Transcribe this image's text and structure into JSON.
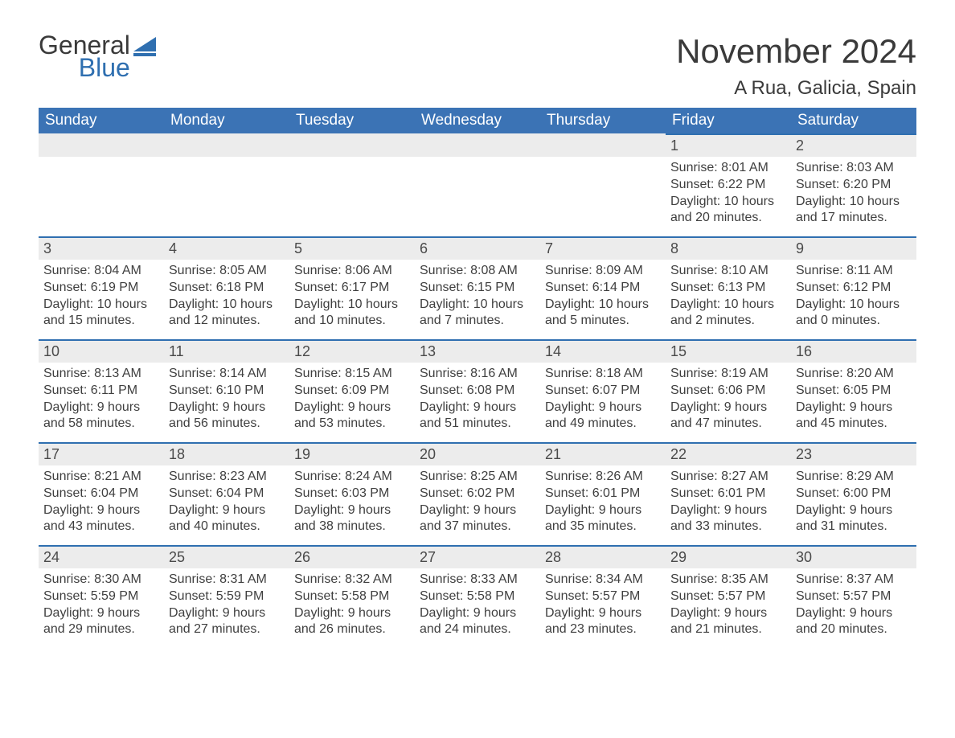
{
  "logo": {
    "general": "General",
    "blue": "Blue",
    "icon_color": "#2f6fb0"
  },
  "title": "November 2024",
  "location": "A Rua, Galicia, Spain",
  "colors": {
    "header_bg": "#3b73b5",
    "header_text": "#ffffff",
    "daynum_bg": "#ececec",
    "daynum_border": "#2f6fb0",
    "body_text": "#3a3a3a",
    "page_bg": "#ffffff"
  },
  "typography": {
    "title_fontsize": 42,
    "location_fontsize": 24,
    "header_fontsize": 19,
    "daynum_fontsize": 18,
    "body_fontsize": 16
  },
  "day_headers": [
    "Sunday",
    "Monday",
    "Tuesday",
    "Wednesday",
    "Thursday",
    "Friday",
    "Saturday"
  ],
  "weeks": [
    [
      null,
      null,
      null,
      null,
      null,
      {
        "n": "1",
        "sunrise": "Sunrise: 8:01 AM",
        "sunset": "Sunset: 6:22 PM",
        "daylight": "Daylight: 10 hours and 20 minutes."
      },
      {
        "n": "2",
        "sunrise": "Sunrise: 8:03 AM",
        "sunset": "Sunset: 6:20 PM",
        "daylight": "Daylight: 10 hours and 17 minutes."
      }
    ],
    [
      {
        "n": "3",
        "sunrise": "Sunrise: 8:04 AM",
        "sunset": "Sunset: 6:19 PM",
        "daylight": "Daylight: 10 hours and 15 minutes."
      },
      {
        "n": "4",
        "sunrise": "Sunrise: 8:05 AM",
        "sunset": "Sunset: 6:18 PM",
        "daylight": "Daylight: 10 hours and 12 minutes."
      },
      {
        "n": "5",
        "sunrise": "Sunrise: 8:06 AM",
        "sunset": "Sunset: 6:17 PM",
        "daylight": "Daylight: 10 hours and 10 minutes."
      },
      {
        "n": "6",
        "sunrise": "Sunrise: 8:08 AM",
        "sunset": "Sunset: 6:15 PM",
        "daylight": "Daylight: 10 hours and 7 minutes."
      },
      {
        "n": "7",
        "sunrise": "Sunrise: 8:09 AM",
        "sunset": "Sunset: 6:14 PM",
        "daylight": "Daylight: 10 hours and 5 minutes."
      },
      {
        "n": "8",
        "sunrise": "Sunrise: 8:10 AM",
        "sunset": "Sunset: 6:13 PM",
        "daylight": "Daylight: 10 hours and 2 minutes."
      },
      {
        "n": "9",
        "sunrise": "Sunrise: 8:11 AM",
        "sunset": "Sunset: 6:12 PM",
        "daylight": "Daylight: 10 hours and 0 minutes."
      }
    ],
    [
      {
        "n": "10",
        "sunrise": "Sunrise: 8:13 AM",
        "sunset": "Sunset: 6:11 PM",
        "daylight": "Daylight: 9 hours and 58 minutes."
      },
      {
        "n": "11",
        "sunrise": "Sunrise: 8:14 AM",
        "sunset": "Sunset: 6:10 PM",
        "daylight": "Daylight: 9 hours and 56 minutes."
      },
      {
        "n": "12",
        "sunrise": "Sunrise: 8:15 AM",
        "sunset": "Sunset: 6:09 PM",
        "daylight": "Daylight: 9 hours and 53 minutes."
      },
      {
        "n": "13",
        "sunrise": "Sunrise: 8:16 AM",
        "sunset": "Sunset: 6:08 PM",
        "daylight": "Daylight: 9 hours and 51 minutes."
      },
      {
        "n": "14",
        "sunrise": "Sunrise: 8:18 AM",
        "sunset": "Sunset: 6:07 PM",
        "daylight": "Daylight: 9 hours and 49 minutes."
      },
      {
        "n": "15",
        "sunrise": "Sunrise: 8:19 AM",
        "sunset": "Sunset: 6:06 PM",
        "daylight": "Daylight: 9 hours and 47 minutes."
      },
      {
        "n": "16",
        "sunrise": "Sunrise: 8:20 AM",
        "sunset": "Sunset: 6:05 PM",
        "daylight": "Daylight: 9 hours and 45 minutes."
      }
    ],
    [
      {
        "n": "17",
        "sunrise": "Sunrise: 8:21 AM",
        "sunset": "Sunset: 6:04 PM",
        "daylight": "Daylight: 9 hours and 43 minutes."
      },
      {
        "n": "18",
        "sunrise": "Sunrise: 8:23 AM",
        "sunset": "Sunset: 6:04 PM",
        "daylight": "Daylight: 9 hours and 40 minutes."
      },
      {
        "n": "19",
        "sunrise": "Sunrise: 8:24 AM",
        "sunset": "Sunset: 6:03 PM",
        "daylight": "Daylight: 9 hours and 38 minutes."
      },
      {
        "n": "20",
        "sunrise": "Sunrise: 8:25 AM",
        "sunset": "Sunset: 6:02 PM",
        "daylight": "Daylight: 9 hours and 37 minutes."
      },
      {
        "n": "21",
        "sunrise": "Sunrise: 8:26 AM",
        "sunset": "Sunset: 6:01 PM",
        "daylight": "Daylight: 9 hours and 35 minutes."
      },
      {
        "n": "22",
        "sunrise": "Sunrise: 8:27 AM",
        "sunset": "Sunset: 6:01 PM",
        "daylight": "Daylight: 9 hours and 33 minutes."
      },
      {
        "n": "23",
        "sunrise": "Sunrise: 8:29 AM",
        "sunset": "Sunset: 6:00 PM",
        "daylight": "Daylight: 9 hours and 31 minutes."
      }
    ],
    [
      {
        "n": "24",
        "sunrise": "Sunrise: 8:30 AM",
        "sunset": "Sunset: 5:59 PM",
        "daylight": "Daylight: 9 hours and 29 minutes."
      },
      {
        "n": "25",
        "sunrise": "Sunrise: 8:31 AM",
        "sunset": "Sunset: 5:59 PM",
        "daylight": "Daylight: 9 hours and 27 minutes."
      },
      {
        "n": "26",
        "sunrise": "Sunrise: 8:32 AM",
        "sunset": "Sunset: 5:58 PM",
        "daylight": "Daylight: 9 hours and 26 minutes."
      },
      {
        "n": "27",
        "sunrise": "Sunrise: 8:33 AM",
        "sunset": "Sunset: 5:58 PM",
        "daylight": "Daylight: 9 hours and 24 minutes."
      },
      {
        "n": "28",
        "sunrise": "Sunrise: 8:34 AM",
        "sunset": "Sunset: 5:57 PM",
        "daylight": "Daylight: 9 hours and 23 minutes."
      },
      {
        "n": "29",
        "sunrise": "Sunrise: 8:35 AM",
        "sunset": "Sunset: 5:57 PM",
        "daylight": "Daylight: 9 hours and 21 minutes."
      },
      {
        "n": "30",
        "sunrise": "Sunrise: 8:37 AM",
        "sunset": "Sunset: 5:57 PM",
        "daylight": "Daylight: 9 hours and 20 minutes."
      }
    ]
  ]
}
